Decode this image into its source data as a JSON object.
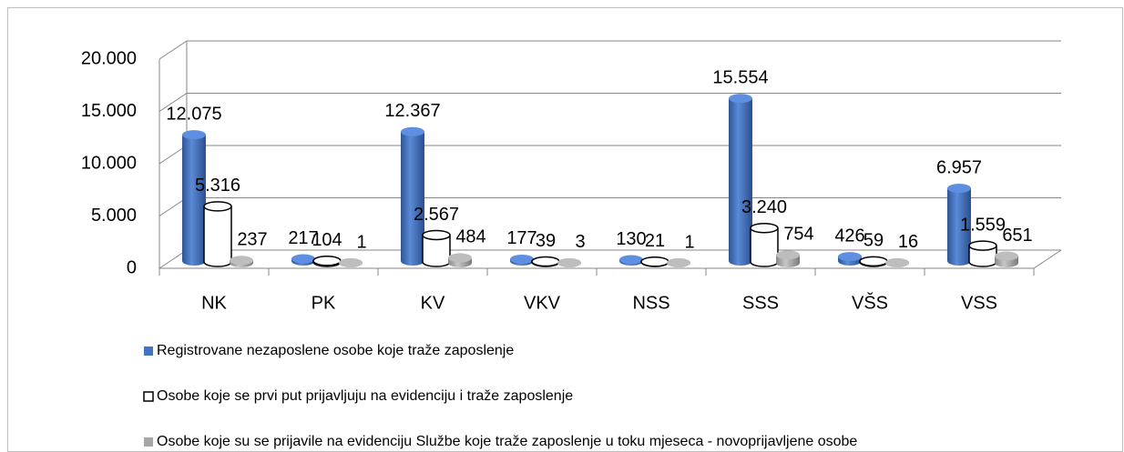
{
  "chart_data": {
    "type": "bar",
    "categories": [
      "NK",
      "PK",
      "KV",
      "VKV",
      "NSS",
      "SSS",
      "VŠS",
      "VSS"
    ],
    "series": [
      {
        "name": "Registrovane nezaposlene osobe koje traže zaposlenje",
        "color": "#4472c4",
        "values": [
          12075,
          217,
          12367,
          177,
          130,
          15554,
          426,
          6957
        ],
        "value_labels": [
          "12.075",
          "217",
          "12.367",
          "177",
          "130",
          "15.554",
          "426",
          "6.957"
        ]
      },
      {
        "name": "Osobe koje se prvi put prijavljuju na evidenciju i traže zaposlenje",
        "color": "#ffffff",
        "values": [
          5316,
          104,
          2567,
          39,
          21,
          3240,
          59,
          1559
        ],
        "value_labels": [
          "5.316",
          "104",
          "2.567",
          "39",
          "21",
          "3.240",
          "59",
          "1.559"
        ]
      },
      {
        "name": "Osobe koje su se prijavile na evidenciju Službe koje traže zaposlenje u toku mjeseca - novoprijavljene osobe",
        "color": "#a6a6a6",
        "values": [
          237,
          1,
          484,
          3,
          1,
          754,
          16,
          651
        ]
      }
    ],
    "ylim": [
      0,
      20000
    ],
    "yticks": [
      0,
      {
        "value": 5000,
        "label": "5.000"
      },
      {
        "value": 10000,
        "label": "10.000"
      },
      {
        "value": 15000,
        "label": "15.000"
      },
      {
        "value": 20000,
        "label": "20.000"
      }
    ],
    "grid": true
  }
}
